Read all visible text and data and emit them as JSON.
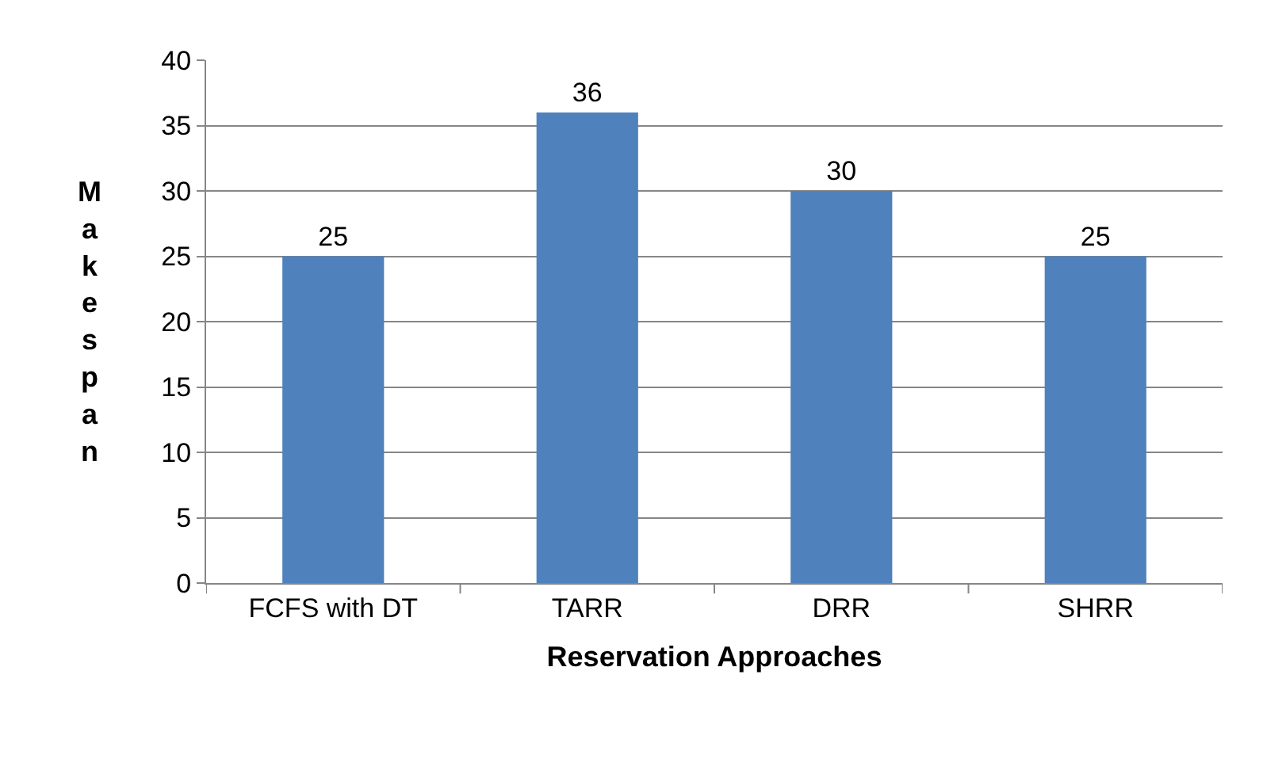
{
  "chart_data": {
    "type": "bar",
    "xlabel": "Reservation Approaches",
    "ylabel": "Makespan",
    "categories": [
      "FCFS with DT",
      "TARR",
      "DRR",
      "SHRR"
    ],
    "values": [
      25,
      36,
      30,
      25
    ],
    "color": "#4f81bd",
    "ylim": [
      0,
      40
    ],
    "yticks": [
      0,
      5,
      10,
      15,
      20,
      25,
      30,
      35,
      40
    ],
    "grid": "y",
    "data_labels": true
  }
}
